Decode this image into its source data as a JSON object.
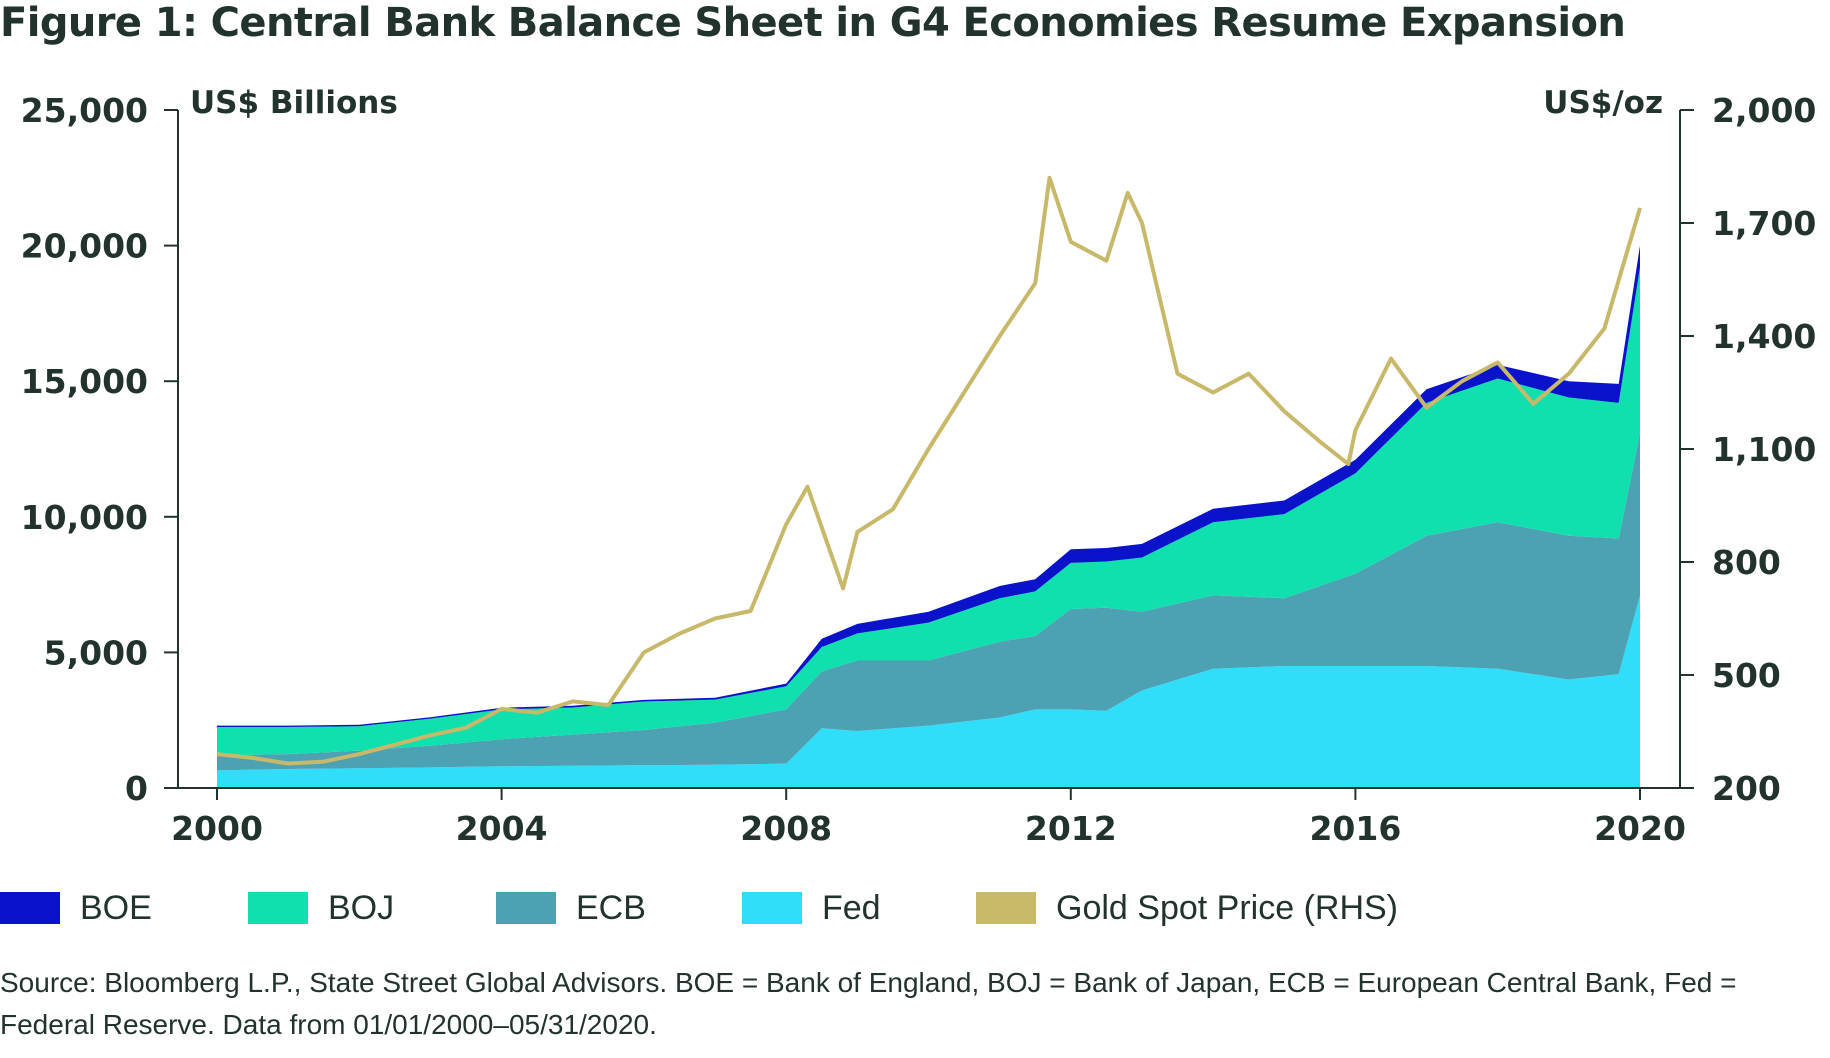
{
  "title": "Figure 1: Central Bank Balance Sheet in G4 Economies Resume Expansion",
  "source": "Source: Bloomberg L.P., State Street Global Advisors. BOE = Bank of England, BOJ = Bank of Japan, ECB = European Central Bank, Fed = Federal Reserve. Data from 01/01/2000–05/31/2020.",
  "legend": [
    {
      "label": "BOE",
      "color": "#0a13c9"
    },
    {
      "label": "BOJ",
      "color": "#0fe0ad"
    },
    {
      "label": "ECB",
      "color": "#4ca1b2"
    },
    {
      "label": "Fed",
      "color": "#30defa"
    },
    {
      "label": "Gold Spot Price (RHS)",
      "color": "#c8b86a"
    }
  ],
  "chart_data": {
    "type": "area",
    "stacked": true,
    "left_unit": "US$ Billions",
    "right_unit": "US$/oz",
    "xlim": [
      2000,
      2020
    ],
    "x_ticks": [
      "2000",
      "2004",
      "2008",
      "2012",
      "2016",
      "2020"
    ],
    "ylim_left": [
      0,
      25000
    ],
    "y_ticks_left": [
      "0",
      "5,000",
      "10,000",
      "15,000",
      "20,000",
      "25,000"
    ],
    "ylim_right": [
      200,
      2000
    ],
    "y_ticks_right": [
      "200",
      "500",
      "800",
      "1,100",
      "1,400",
      "1,700",
      "2,000"
    ],
    "x": [
      2000,
      2001,
      2002,
      2003,
      2004,
      2005,
      2006,
      2007,
      2008,
      2008.5,
      2009,
      2010,
      2011,
      2011.5,
      2012,
      2012.5,
      2013,
      2014,
      2015,
      2016,
      2017,
      2018,
      2019,
      2019.7,
      2020
    ],
    "series": [
      {
        "name": "Fed",
        "color": "#30defa",
        "values": [
          650,
          700,
          730,
          760,
          800,
          820,
          840,
          860,
          900,
          2200,
          2100,
          2300,
          2600,
          2900,
          2900,
          2850,
          3600,
          4400,
          4500,
          4500,
          4500,
          4400,
          4000,
          4200,
          7100
        ]
      },
      {
        "name": "ECB",
        "color": "#4ca1b2",
        "values": [
          550,
          550,
          650,
          800,
          1000,
          1150,
          1300,
          1550,
          2000,
          2100,
          2600,
          2400,
          2800,
          2700,
          3700,
          3800,
          2900,
          2700,
          2500,
          3400,
          4800,
          5400,
          5300,
          5000,
          6000
        ]
      },
      {
        "name": "BOJ",
        "color": "#0fe0ad",
        "values": [
          1050,
          1000,
          900,
          1000,
          1100,
          1000,
          1050,
          850,
          850,
          900,
          1000,
          1400,
          1600,
          1650,
          1700,
          1700,
          2000,
          2700,
          3100,
          3700,
          4900,
          5300,
          5100,
          5000,
          6100
        ]
      },
      {
        "name": "BOE",
        "color": "#0a13c9",
        "values": [
          50,
          50,
          50,
          50,
          60,
          60,
          60,
          70,
          100,
          300,
          350,
          400,
          450,
          450,
          500,
          500,
          500,
          500,
          500,
          500,
          500,
          500,
          600,
          700,
          800
        ]
      }
    ],
    "gold": {
      "name": "Gold Spot Price (RHS)",
      "x": [
        2000,
        2000.5,
        2001,
        2001.5,
        2002,
        2002.5,
        2003,
        2003.5,
        2004,
        2004.5,
        2005,
        2005.5,
        2006,
        2006.5,
        2007,
        2007.5,
        2008,
        2008.3,
        2008.8,
        2009,
        2009.5,
        2010,
        2010.5,
        2011,
        2011.5,
        2011.7,
        2012,
        2012.5,
        2012.8,
        2013,
        2013.5,
        2014,
        2014.5,
        2015,
        2015.5,
        2015.9,
        2016,
        2016.5,
        2017,
        2017.5,
        2018,
        2018.5,
        2019,
        2019.5,
        2020
      ],
      "values": [
        290,
        280,
        265,
        270,
        290,
        315,
        340,
        360,
        410,
        400,
        430,
        420,
        560,
        610,
        650,
        670,
        900,
        1000,
        730,
        880,
        940,
        1100,
        1250,
        1400,
        1540,
        1820,
        1650,
        1600,
        1780,
        1700,
        1300,
        1250,
        1300,
        1200,
        1120,
        1060,
        1150,
        1340,
        1210,
        1280,
        1330,
        1220,
        1300,
        1420,
        1740
      ]
    }
  }
}
